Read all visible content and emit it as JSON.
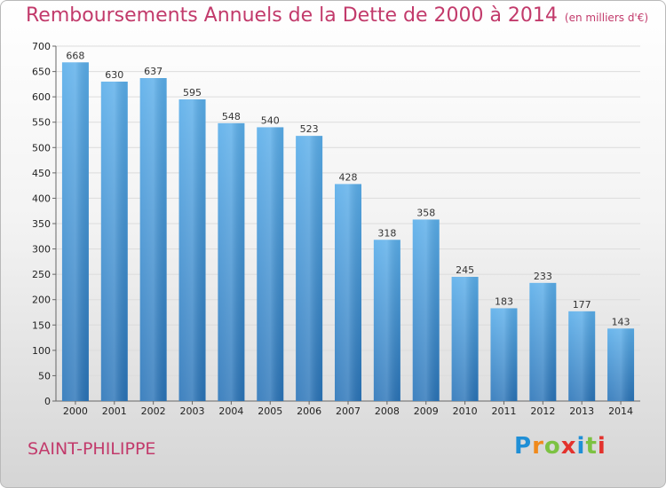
{
  "header": {
    "title": "Remboursements Annuels de la Dette de 2000 à 2014",
    "unit": "(en milliers d'€)"
  },
  "footer": {
    "commune": "SAINT-PHILIPPE",
    "logo": {
      "letters": [
        "P",
        "r",
        "o",
        "x",
        "i",
        "t",
        "i"
      ],
      "colors": [
        "#1f8fd6",
        "#f08a1c",
        "#7cc242",
        "#e3322d",
        "#1f8fd6",
        "#7cc242",
        "#e3322d"
      ]
    }
  },
  "colors": {
    "title": "#c23a6b",
    "bar_top": "#5aaeea",
    "bar_bottom": "#2a74b8"
  },
  "chart_data": {
    "type": "bar",
    "title": "Remboursements Annuels de la Dette de 2000 à 2014",
    "xlabel": "",
    "ylabel": "",
    "categories": [
      "2000",
      "2001",
      "2002",
      "2003",
      "2004",
      "2005",
      "2006",
      "2007",
      "2008",
      "2009",
      "2010",
      "2011",
      "2012",
      "2013",
      "2014"
    ],
    "values": [
      668,
      630,
      637,
      595,
      548,
      540,
      523,
      428,
      318,
      358,
      245,
      183,
      233,
      177,
      143
    ],
    "ylim": [
      0,
      700
    ],
    "yticks": [
      0,
      50,
      100,
      150,
      200,
      250,
      300,
      350,
      400,
      450,
      500,
      550,
      600,
      650,
      700
    ],
    "grid": true,
    "legend": "none"
  }
}
